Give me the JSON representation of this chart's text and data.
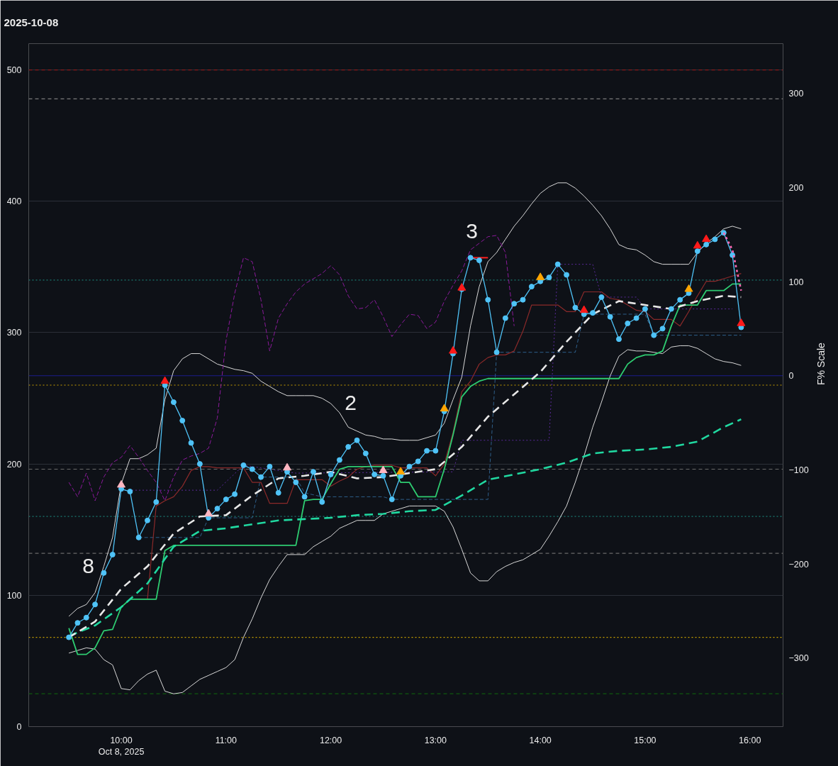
{
  "chart_data": {
    "type": "line",
    "title": "2025-10-08",
    "y2label": "F% Scale",
    "x": [
      "2025-10-08T09:30",
      "2025-10-08T09:35",
      "2025-10-08T09:40",
      "2025-10-08T09:45",
      "2025-10-08T09:50",
      "2025-10-08T09:55",
      "2025-10-08T10:00",
      "2025-10-08T10:05",
      "2025-10-08T10:10",
      "2025-10-08T10:15",
      "2025-10-08T10:20",
      "2025-10-08T10:25",
      "2025-10-08T10:30",
      "2025-10-08T10:35",
      "2025-10-08T10:40",
      "2025-10-08T10:45",
      "2025-10-08T10:50",
      "2025-10-08T10:55",
      "2025-10-08T11:00",
      "2025-10-08T11:05",
      "2025-10-08T11:10",
      "2025-10-08T11:15",
      "2025-10-08T11:20",
      "2025-10-08T11:25",
      "2025-10-08T11:30",
      "2025-10-08T11:35",
      "2025-10-08T11:40",
      "2025-10-08T11:45",
      "2025-10-08T11:50",
      "2025-10-08T11:55",
      "2025-10-08T12:00",
      "2025-10-08T12:05",
      "2025-10-08T12:10",
      "2025-10-08T12:15",
      "2025-10-08T12:20",
      "2025-10-08T12:25",
      "2025-10-08T12:30",
      "2025-10-08T12:35",
      "2025-10-08T12:40",
      "2025-10-08T12:45",
      "2025-10-08T12:50",
      "2025-10-08T12:55",
      "2025-10-08T13:00",
      "2025-10-08T13:05",
      "2025-10-08T13:10",
      "2025-10-08T13:15",
      "2025-10-08T13:20",
      "2025-10-08T13:25",
      "2025-10-08T13:30",
      "2025-10-08T13:35",
      "2025-10-08T13:40",
      "2025-10-08T13:45",
      "2025-10-08T13:50",
      "2025-10-08T13:55",
      "2025-10-08T14:00",
      "2025-10-08T14:05",
      "2025-10-08T14:10",
      "2025-10-08T14:15",
      "2025-10-08T14:20",
      "2025-10-08T14:25",
      "2025-10-08T14:30",
      "2025-10-08T14:35",
      "2025-10-08T14:40",
      "2025-10-08T14:45",
      "2025-10-08T14:50",
      "2025-10-08T14:55",
      "2025-10-08T15:00",
      "2025-10-08T15:05",
      "2025-10-08T15:10",
      "2025-10-08T15:15",
      "2025-10-08T15:20",
      "2025-10-08T15:25",
      "2025-10-08T15:30",
      "2025-10-08T15:35",
      "2025-10-08T15:40",
      "2025-10-08T15:45",
      "2025-10-08T15:50",
      "2025-10-08T15:55"
    ],
    "xlim": [
      "2025-10-08T09:07",
      "2025-10-08T16:19"
    ],
    "xticks": [
      {
        "value": "2025-10-08T10:00",
        "label": "10:00\nOct 8, 2025"
      },
      {
        "value": "2025-10-08T11:00",
        "label": "11:00"
      },
      {
        "value": "2025-10-08T12:00",
        "label": "12:00"
      },
      {
        "value": "2025-10-08T13:00",
        "label": "13:00"
      },
      {
        "value": "2025-10-08T14:00",
        "label": "14:00"
      },
      {
        "value": "2025-10-08T15:00",
        "label": "15:00"
      },
      {
        "value": "2025-10-08T16:00",
        "label": "16:00"
      }
    ],
    "ylim": [
      0,
      520
    ],
    "yticks": [
      0,
      100,
      200,
      300,
      400,
      500
    ],
    "y2lim": [
      -373,
      353
    ],
    "y2ticks": [
      {
        "value": -300,
        "label": "−300"
      },
      {
        "value": -200,
        "label": "−200"
      },
      {
        "value": -100,
        "label": "−100"
      },
      0,
      100,
      200,
      300
    ],
    "grid": "y",
    "ref_lines": [
      {
        "axis": "y",
        "value": 500,
        "color": "#8b1a1a",
        "line_style": "dashed"
      },
      {
        "axis": "y",
        "value": 478,
        "color": "#7a7a7a",
        "line_style": "dashed"
      },
      {
        "axis": "y",
        "value": 340,
        "color": "#1a7a70",
        "line_style": "dotted"
      },
      {
        "axis": "y2",
        "value": 0,
        "color": "#1c1c8c",
        "line_style": "solid"
      },
      {
        "axis": "y",
        "value": 260,
        "color": "#c8a000",
        "line_style": "dotted"
      },
      {
        "axis": "y",
        "value": 196,
        "color": "#6a6a6a",
        "line_style": "dashed"
      },
      {
        "axis": "y",
        "value": 160,
        "color": "#1a7a70",
        "line_style": "dotted"
      },
      {
        "axis": "y",
        "value": 132,
        "color": "#6a6a6a",
        "line_style": "dashed"
      },
      {
        "axis": "y",
        "value": 68,
        "color": "#c8a000",
        "line_style": "dotted"
      },
      {
        "axis": "y",
        "value": 25,
        "color": "#0f5a0f",
        "line_style": "dashed"
      }
    ],
    "series": [
      {
        "color": "#d8d8d8",
        "values": [
          84,
          90,
          93,
          102,
          122,
          144,
          185,
          204,
          204,
          207,
          212,
          249,
          271,
          280,
          284,
          284,
          280,
          276,
          274,
          272,
          271,
          269,
          263,
          259,
          255,
          252,
          252,
          252,
          252,
          250,
          246,
          239,
          228,
          225,
          222,
          221,
          219,
          219,
          218,
          218,
          218,
          220,
          222,
          231,
          249,
          266,
          305,
          335,
          354,
          361,
          371,
          381,
          389,
          398,
          406,
          411,
          414,
          414,
          410,
          404,
          397,
          389,
          379,
          367,
          364,
          363,
          359,
          354,
          352,
          352,
          352,
          352,
          361,
          368,
          373,
          379,
          381,
          379
        ]
      },
      {
        "color": "#d8d8d8",
        "values": [
          56,
          58,
          60,
          59,
          51,
          47,
          29,
          28,
          35,
          40,
          43,
          27,
          25,
          26,
          31,
          36,
          39,
          42,
          45,
          51,
          68,
          82,
          98,
          112,
          122,
          131,
          131,
          131,
          137,
          141,
          145,
          151,
          154,
          157,
          157,
          157,
          162,
          164,
          166,
          168,
          168,
          168,
          168,
          164,
          152,
          135,
          117,
          111,
          111,
          118,
          122,
          125,
          127,
          131,
          135,
          145,
          156,
          168,
          186,
          206,
          228,
          247,
          267,
          282,
          287,
          286,
          286,
          285,
          284,
          289,
          290,
          290,
          288,
          284,
          280,
          278,
          277,
          275
        ]
      },
      {
        "color": "#8b1a9b",
        "line_style": "dashed",
        "x": [
          "2025-10-08T09:30",
          "2025-10-08T09:35",
          "2025-10-08T09:40",
          "2025-10-08T09:45",
          "2025-10-08T09:50",
          "2025-10-08T09:55",
          "2025-10-08T10:00",
          "2025-10-08T10:05",
          "2025-10-08T10:10",
          "2025-10-08T10:15",
          "2025-10-08T10:20",
          "2025-10-08T10:25",
          "2025-10-08T10:30",
          "2025-10-08T10:35",
          "2025-10-08T10:40",
          "2025-10-08T10:45",
          "2025-10-08T10:50",
          "2025-10-08T10:55",
          "2025-10-08T11:00",
          "2025-10-08T11:05",
          "2025-10-08T11:10",
          "2025-10-08T11:15",
          "2025-10-08T11:20",
          "2025-10-08T11:25",
          "2025-10-08T11:30",
          "2025-10-08T11:35",
          "2025-10-08T11:40",
          "2025-10-08T11:45",
          "2025-10-08T11:50",
          "2025-10-08T11:55",
          "2025-10-08T12:00",
          "2025-10-08T12:05",
          "2025-10-08T12:10",
          "2025-10-08T12:15",
          "2025-10-08T12:20",
          "2025-10-08T12:25",
          "2025-10-08T12:30",
          "2025-10-08T12:35",
          "2025-10-08T12:40",
          "2025-10-08T12:45",
          "2025-10-08T12:50",
          "2025-10-08T12:55",
          "2025-10-08T13:00",
          "2025-10-08T13:05",
          "2025-10-08T13:10",
          "2025-10-08T13:15",
          "2025-10-08T13:20",
          "2025-10-08T13:25",
          "2025-10-08T13:30",
          "2025-10-08T13:35",
          "2025-10-08T13:40",
          "2025-10-08T13:45"
        ],
        "values": [
          186,
          175,
          193,
          172,
          190,
          201,
          205,
          214,
          205,
          195,
          186,
          172,
          190,
          203,
          206,
          208,
          212,
          235,
          294,
          330,
          357,
          354,
          325,
          286,
          311,
          322,
          331,
          337,
          341,
          345,
          351,
          344,
          328,
          318,
          319,
          325,
          312,
          297,
          306,
          314,
          313,
          303,
          308,
          324,
          336,
          347,
          363,
          368,
          373,
          374,
          361,
          305
        ]
      },
      {
        "color": "#5b2a9b",
        "line_style": "dotted",
        "x": [
          "2025-10-08T10:00",
          "2025-10-08T10:55",
          "2025-10-08T11:10",
          "2025-10-08T11:40",
          "2025-10-08T13:10",
          "2025-10-08T13:15",
          "2025-10-08T14:05",
          "2025-10-08T14:10",
          "2025-10-08T14:30",
          "2025-10-08T14:35",
          "2025-10-08T14:55",
          "2025-10-08T15:00",
          "2025-10-08T15:50"
        ],
        "values": [
          180,
          180,
          199,
          193,
          194,
          218,
          218,
          352,
          352,
          327,
          327,
          318,
          318
        ]
      },
      {
        "color": "#2e5f8a",
        "line_style": "dashed",
        "x": [
          "2025-10-08T10:10",
          "2025-10-08T10:45",
          "2025-10-08T10:50",
          "2025-10-08T11:15",
          "2025-10-08T11:20",
          "2025-10-08T11:40",
          "2025-10-08T11:45",
          "2025-10-08T11:55",
          "2025-10-08T12:30",
          "2025-10-08T12:35",
          "2025-10-08T13:30",
          "2025-10-08T13:35",
          "2025-10-08T14:20",
          "2025-10-08T14:25",
          "2025-10-08T15:00",
          "2025-10-08T15:05",
          "2025-10-08T15:55"
        ],
        "values": [
          144,
          144,
          159,
          159,
          190,
          190,
          178,
          175,
          175,
          173,
          173,
          285,
          285,
          314,
          314,
          298,
          298
        ]
      },
      {
        "color": "#8b2a2a",
        "x": [
          "2025-10-08T10:15",
          "2025-10-08T10:20",
          "2025-10-08T10:25",
          "2025-10-08T10:30",
          "2025-10-08T10:35",
          "2025-10-08T10:40",
          "2025-10-08T10:45",
          "2025-10-08T10:50",
          "2025-10-08T10:55",
          "2025-10-08T11:00",
          "2025-10-08T11:05",
          "2025-10-08T11:10",
          "2025-10-08T11:15",
          "2025-10-08T11:20",
          "2025-10-08T11:25",
          "2025-10-08T11:30",
          "2025-10-08T11:35",
          "2025-10-08T11:40",
          "2025-10-08T11:45",
          "2025-10-08T11:50",
          "2025-10-08T11:55",
          "2025-10-08T12:00",
          "2025-10-08T12:05",
          "2025-10-08T12:10",
          "2025-10-08T12:15",
          "2025-10-08T12:20",
          "2025-10-08T12:25",
          "2025-10-08T12:30",
          "2025-10-08T12:35",
          "2025-10-08T12:40",
          "2025-10-08T12:45",
          "2025-10-08T12:50",
          "2025-10-08T12:55",
          "2025-10-08T13:00",
          "2025-10-08T13:05",
          "2025-10-08T13:10",
          "2025-10-08T13:15",
          "2025-10-08T13:20",
          "2025-10-08T13:25",
          "2025-10-08T13:30",
          "2025-10-08T13:35",
          "2025-10-08T13:40",
          "2025-10-08T13:45",
          "2025-10-08T13:50",
          "2025-10-08T13:55",
          "2025-10-08T14:00",
          "2025-10-08T14:05",
          "2025-10-08T14:10",
          "2025-10-08T14:15",
          "2025-10-08T14:20",
          "2025-10-08T14:25",
          "2025-10-08T14:30",
          "2025-10-08T14:35",
          "2025-10-08T14:40",
          "2025-10-08T14:45",
          "2025-10-08T14:50",
          "2025-10-08T14:55",
          "2025-10-08T15:00",
          "2025-10-08T15:05",
          "2025-10-08T15:10",
          "2025-10-08T15:15",
          "2025-10-08T15:20",
          "2025-10-08T15:25",
          "2025-10-08T15:30",
          "2025-10-08T15:35",
          "2025-10-08T15:40",
          "2025-10-08T15:45",
          "2025-10-08T15:50",
          "2025-10-08T15:55"
        ],
        "values": [
          97,
          168,
          172,
          175,
          183,
          195,
          198,
          198,
          197,
          197,
          197,
          197,
          186,
          186,
          170,
          170,
          170,
          188,
          188,
          188,
          188,
          183,
          187,
          190,
          196,
          198,
          199,
          199,
          199,
          197,
          197,
          197,
          197,
          191,
          200,
          224,
          255,
          263,
          276,
          281,
          283,
          283,
          286,
          301,
          321,
          321,
          321,
          321,
          316,
          316,
          331,
          331,
          331,
          326,
          325,
          321,
          317,
          316,
          310,
          310,
          310,
          305,
          316,
          328,
          339,
          339,
          341,
          343,
          345
        ]
      },
      {
        "color": "#2ecc71",
        "values": [
          75,
          55,
          55,
          60,
          73,
          74,
          91,
          97,
          97,
          97,
          97,
          134,
          138,
          138,
          138,
          138,
          138,
          138,
          138,
          138,
          138,
          138,
          138,
          138,
          138,
          138,
          138,
          172,
          173,
          173,
          185,
          196,
          198,
          198,
          198,
          198,
          198,
          198,
          186,
          186,
          175,
          175,
          175,
          196,
          222,
          251,
          259,
          263,
          265,
          265,
          265,
          265,
          265,
          265,
          265,
          265,
          265,
          265,
          265,
          265,
          265,
          265,
          265,
          265,
          276,
          281,
          283,
          283,
          286,
          305,
          321,
          321,
          321,
          332,
          332,
          332,
          337,
          337
        ]
      },
      {
        "color": "#20d8a0",
        "line_style": "dashed",
        "x": [
          "2025-10-08T09:30",
          "2025-10-08T09:45",
          "2025-10-08T10:00",
          "2025-10-08T10:15",
          "2025-10-08T10:30",
          "2025-10-08T10:45",
          "2025-10-08T11:00",
          "2025-10-08T11:15",
          "2025-10-08T11:30",
          "2025-10-08T11:45",
          "2025-10-08T12:00",
          "2025-10-08T12:15",
          "2025-10-08T12:30",
          "2025-10-08T12:45",
          "2025-10-08T13:00",
          "2025-10-08T13:15",
          "2025-10-08T13:30",
          "2025-10-08T13:45",
          "2025-10-08T14:00",
          "2025-10-08T14:15",
          "2025-10-08T14:30",
          "2025-10-08T14:45",
          "2025-10-08T15:00",
          "2025-10-08T15:15",
          "2025-10-08T15:30",
          "2025-10-08T15:45",
          "2025-10-08T15:55"
        ],
        "values": [
          69,
          77,
          91,
          109,
          137,
          149,
          151,
          154,
          157,
          158,
          159,
          161,
          162,
          164,
          165,
          176,
          188,
          192,
          196,
          201,
          208,
          210,
          211,
          213,
          217,
          228,
          234
        ]
      },
      {
        "color": "#e8e8e8",
        "line_style": "dashed",
        "x": [
          "2025-10-08T09:30",
          "2025-10-08T09:45",
          "2025-10-08T10:00",
          "2025-10-08T10:15",
          "2025-10-08T10:30",
          "2025-10-08T10:45",
          "2025-10-08T11:00",
          "2025-10-08T11:15",
          "2025-10-08T11:30",
          "2025-10-08T11:45",
          "2025-10-08T12:00",
          "2025-10-08T12:15",
          "2025-10-08T12:30",
          "2025-10-08T12:45",
          "2025-10-08T13:00",
          "2025-10-08T13:15",
          "2025-10-08T13:30",
          "2025-10-08T13:45",
          "2025-10-08T14:00",
          "2025-10-08T14:15",
          "2025-10-08T14:30",
          "2025-10-08T14:45",
          "2025-10-08T15:00",
          "2025-10-08T15:15",
          "2025-10-08T15:30",
          "2025-10-08T15:45",
          "2025-10-08T15:55"
        ],
        "values": [
          68,
          80,
          105,
          122,
          147,
          160,
          161,
          176,
          189,
          191,
          194,
          189,
          190,
          193,
          196,
          213,
          236,
          253,
          270,
          293,
          314,
          324,
          321,
          318,
          324,
          328,
          327
        ]
      },
      {
        "color": "#ff2020",
        "x": [
          "2025-10-08T13:20",
          "2025-10-08T13:30"
        ],
        "values": [
          357,
          357
        ]
      },
      {
        "color": "#4fc3f7",
        "marker": "circle",
        "values": [
          68,
          79,
          83,
          93,
          117,
          131,
          181,
          179,
          144,
          157,
          171,
          260,
          247,
          233,
          216,
          200,
          159,
          166,
          173,
          177,
          199,
          196,
          190,
          198,
          178,
          194,
          186,
          175,
          194,
          171,
          192,
          203,
          213,
          218,
          208,
          192,
          191,
          173,
          191,
          198,
          202,
          210,
          210,
          240,
          284,
          333,
          357,
          355,
          325,
          285,
          311,
          322,
          325,
          335,
          339,
          342,
          352,
          344,
          319,
          314,
          315,
          327,
          312,
          295,
          307,
          311,
          318,
          298,
          303,
          318,
          325,
          330,
          362,
          367,
          371,
          376,
          359,
          304
        ]
      },
      {
        "color": "#ff69b4",
        "line_style": "dotted",
        "x": [
          "2025-10-08T15:45",
          "2025-10-08T15:50",
          "2025-10-08T15:55"
        ],
        "values": [
          376,
          363,
          332
        ]
      },
      {
        "type": "scatter",
        "marker": "triangle",
        "color": "#ff1a1a",
        "x": [
          "2025-10-08T10:25",
          "2025-10-08T13:10",
          "2025-10-08T13:15",
          "2025-10-08T14:25",
          "2025-10-08T15:30",
          "2025-10-08T15:35",
          "2025-10-08T15:55"
        ],
        "values": [
          263,
          286,
          334,
          317,
          366,
          371,
          307
        ]
      },
      {
        "type": "scatter",
        "marker": "triangle",
        "color": "#ffb6c1",
        "x": [
          "2025-10-08T10:00",
          "2025-10-08T10:50",
          "2025-10-08T11:35",
          "2025-10-08T12:30"
        ],
        "values": [
          184,
          162,
          197,
          195
        ]
      },
      {
        "type": "scatter",
        "marker": "triangle",
        "color": "#ffa500",
        "x": [
          "2025-10-08T12:40",
          "2025-10-08T13:05",
          "2025-10-08T14:00",
          "2025-10-08T15:25"
        ],
        "values": [
          194,
          242,
          342,
          333
        ]
      }
    ],
    "annotations": [
      "8",
      "2",
      "3"
    ]
  }
}
